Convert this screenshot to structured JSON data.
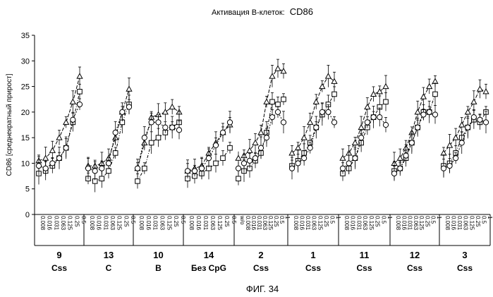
{
  "chart_data": {
    "type": "line",
    "title_prefix": "Активация В-клеток:",
    "title_marker": "CD86",
    "ylabel": "CD86 [среднекратный прирост]",
    "ylim": [
      0,
      35
    ],
    "yticks": [
      0,
      5,
      10,
      15,
      20,
      25,
      30,
      35
    ],
    "concentrations": [
      "0.008",
      "0.016",
      "0.031",
      "0.063",
      "0.125",
      "0.25",
      "0.5"
    ],
    "groups": [
      {
        "number": "9",
        "type": "Css",
        "concentrations": [
          "0.008",
          "0.016",
          "0.031",
          "0.063",
          "0.125",
          "0.25",
          "0.5"
        ],
        "series": [
          {
            "marker": "triangle",
            "values": [
              10.5,
              11,
              12.5,
              15,
              18,
              22,
              27
            ]
          },
          {
            "marker": "square",
            "values": [
              8,
              8.5,
              9.5,
              11,
              13,
              18,
              24
            ]
          },
          {
            "marker": "circle",
            "values": [
              9.5,
              9,
              10,
              11,
              13,
              18.5,
              21.5
            ]
          }
        ]
      },
      {
        "number": "13",
        "type": "C",
        "concentrations": [
          "0.008",
          "0.016",
          "0.031",
          "0.063",
          "0.125",
          "0.25",
          "0.5"
        ],
        "series": [
          {
            "marker": "triangle",
            "values": [
              9.5,
              9.5,
              10,
              11,
              15,
              20,
              24.5
            ]
          },
          {
            "marker": "square",
            "values": [
              7,
              6.5,
              7,
              8.5,
              12,
              18,
              21.5
            ]
          },
          {
            "marker": "circle",
            "values": [
              9,
              8.5,
              9,
              10,
              16,
              20,
              21
            ]
          }
        ]
      },
      {
        "number": "10",
        "type": "B",
        "concentrations": [
          "0.008",
          "0.016",
          "0.031",
          "0.063",
          "0.125",
          "0.25",
          "0.5"
        ],
        "series": [
          {
            "marker": "triangle",
            "values": [
              9,
              14,
              19,
              19.5,
              20,
              21,
              20
            ]
          },
          {
            "marker": "square",
            "values": [
              6.5,
              9,
              14,
              15,
              16,
              17,
              18
            ]
          },
          {
            "marker": "circle",
            "values": [
              9,
              15,
              18,
              18,
              17,
              17,
              16.5
            ]
          }
        ]
      },
      {
        "number": "14",
        "type": "Без CpG",
        "concentrations": [
          "0.008",
          "0.016",
          "0.031",
          "0.063",
          "0.125",
          "0.25",
          "0.5"
        ],
        "series": [
          {
            "marker": "triangle",
            "values": [
              8.5,
              9,
              9.5,
              12,
              14,
              16,
              17.5
            ]
          },
          {
            "marker": "square",
            "values": [
              7,
              7.5,
              8,
              9,
              10,
              11,
              13
            ]
          },
          {
            "marker": "circle",
            "values": [
              8.5,
              8.5,
              9,
              11,
              13.5,
              16,
              18
            ]
          }
        ]
      },
      {
        "number": "2",
        "type": "Css",
        "wo_label": "w/o",
        "wo_values": {
          "triangle": 11,
          "square": 7,
          "circle": 9
        },
        "concentrations": [
          "0.008",
          "0.016",
          "0.031",
          "0.063",
          "0.125",
          "0.25",
          "0.5",
          "1"
        ],
        "series": [
          {
            "marker": "triangle",
            "values": [
              11.5,
              12.5,
              14,
              16,
              22,
              27,
              28.5,
              28
            ]
          },
          {
            "marker": "square",
            "values": [
              8.5,
              9,
              10.5,
              12,
              16,
              22,
              21.5,
              22.5
            ]
          },
          {
            "marker": "circle",
            "values": [
              10,
              10.5,
              11,
              13,
              15,
              19,
              20,
              18
            ]
          }
        ]
      },
      {
        "number": "1",
        "type": "Css",
        "concentrations": [
          "0.008",
          "0.016",
          "0.031",
          "0.063",
          "0.125",
          "0.25",
          "0.5",
          "1"
        ],
        "series": [
          {
            "marker": "triangle",
            "values": [
              12,
              13,
              15,
              18,
              22,
              25,
              27,
              26
            ]
          },
          {
            "marker": "square",
            "values": [
              9.5,
              10.5,
              12,
              14,
              17,
              19.5,
              21.5,
              23.5
            ]
          },
          {
            "marker": "circle",
            "values": [
              9,
              10,
              11,
              13,
              17,
              20,
              20,
              18
            ]
          }
        ]
      },
      {
        "number": "11",
        "type": "Css",
        "concentrations": [
          "0.008",
          "0.016",
          "0.031",
          "0.063",
          "0.125",
          "0.25",
          "0.5",
          "1"
        ],
        "series": [
          {
            "marker": "triangle",
            "values": [
              11,
              12,
              14,
              17,
              21,
              23.5,
              24,
              25
            ]
          },
          {
            "marker": "square",
            "values": [
              8,
              9,
              11,
              14,
              17,
              19,
              21,
              22
            ]
          },
          {
            "marker": "circle",
            "values": [
              9,
              10,
              11,
              15,
              18,
              19,
              19,
              17.5
            ]
          }
        ]
      },
      {
        "number": "12",
        "type": "Css",
        "concentrations": [
          "0.008",
          "0.016",
          "0.031",
          "0.063",
          "0.125",
          "0.25",
          "0.5",
          "1"
        ],
        "series": [
          {
            "marker": "triangle",
            "values": [
              10,
              11,
              13,
              16,
              20,
              23,
              25,
              26
            ]
          },
          {
            "marker": "square",
            "values": [
              8.5,
              9,
              11,
              14,
              17,
              20,
              20,
              23.5
            ]
          },
          {
            "marker": "circle",
            "values": [
              8,
              9,
              11.5,
              14,
              17,
              19.5,
              20,
              19.5
            ]
          }
        ]
      },
      {
        "number": "3",
        "type": "Css",
        "concentrations": [
          "0.008",
          "0.016",
          "0.031",
          "0.063",
          "0.125",
          "0.25",
          "0.5",
          "1"
        ],
        "series": [
          {
            "marker": "triangle",
            "values": [
              12,
              13.5,
              15,
              17.5,
              20,
              22,
              24.5,
              24
            ]
          },
          {
            "marker": "square",
            "values": [
              9.5,
              10,
              12,
              15,
              17,
              18.5,
              18,
              20
            ]
          },
          {
            "marker": "circle",
            "values": [
              9,
              9.5,
              11,
              14,
              17,
              19,
              18.5,
              18
            ]
          }
        ]
      }
    ],
    "caption": "ФИГ. 34"
  }
}
